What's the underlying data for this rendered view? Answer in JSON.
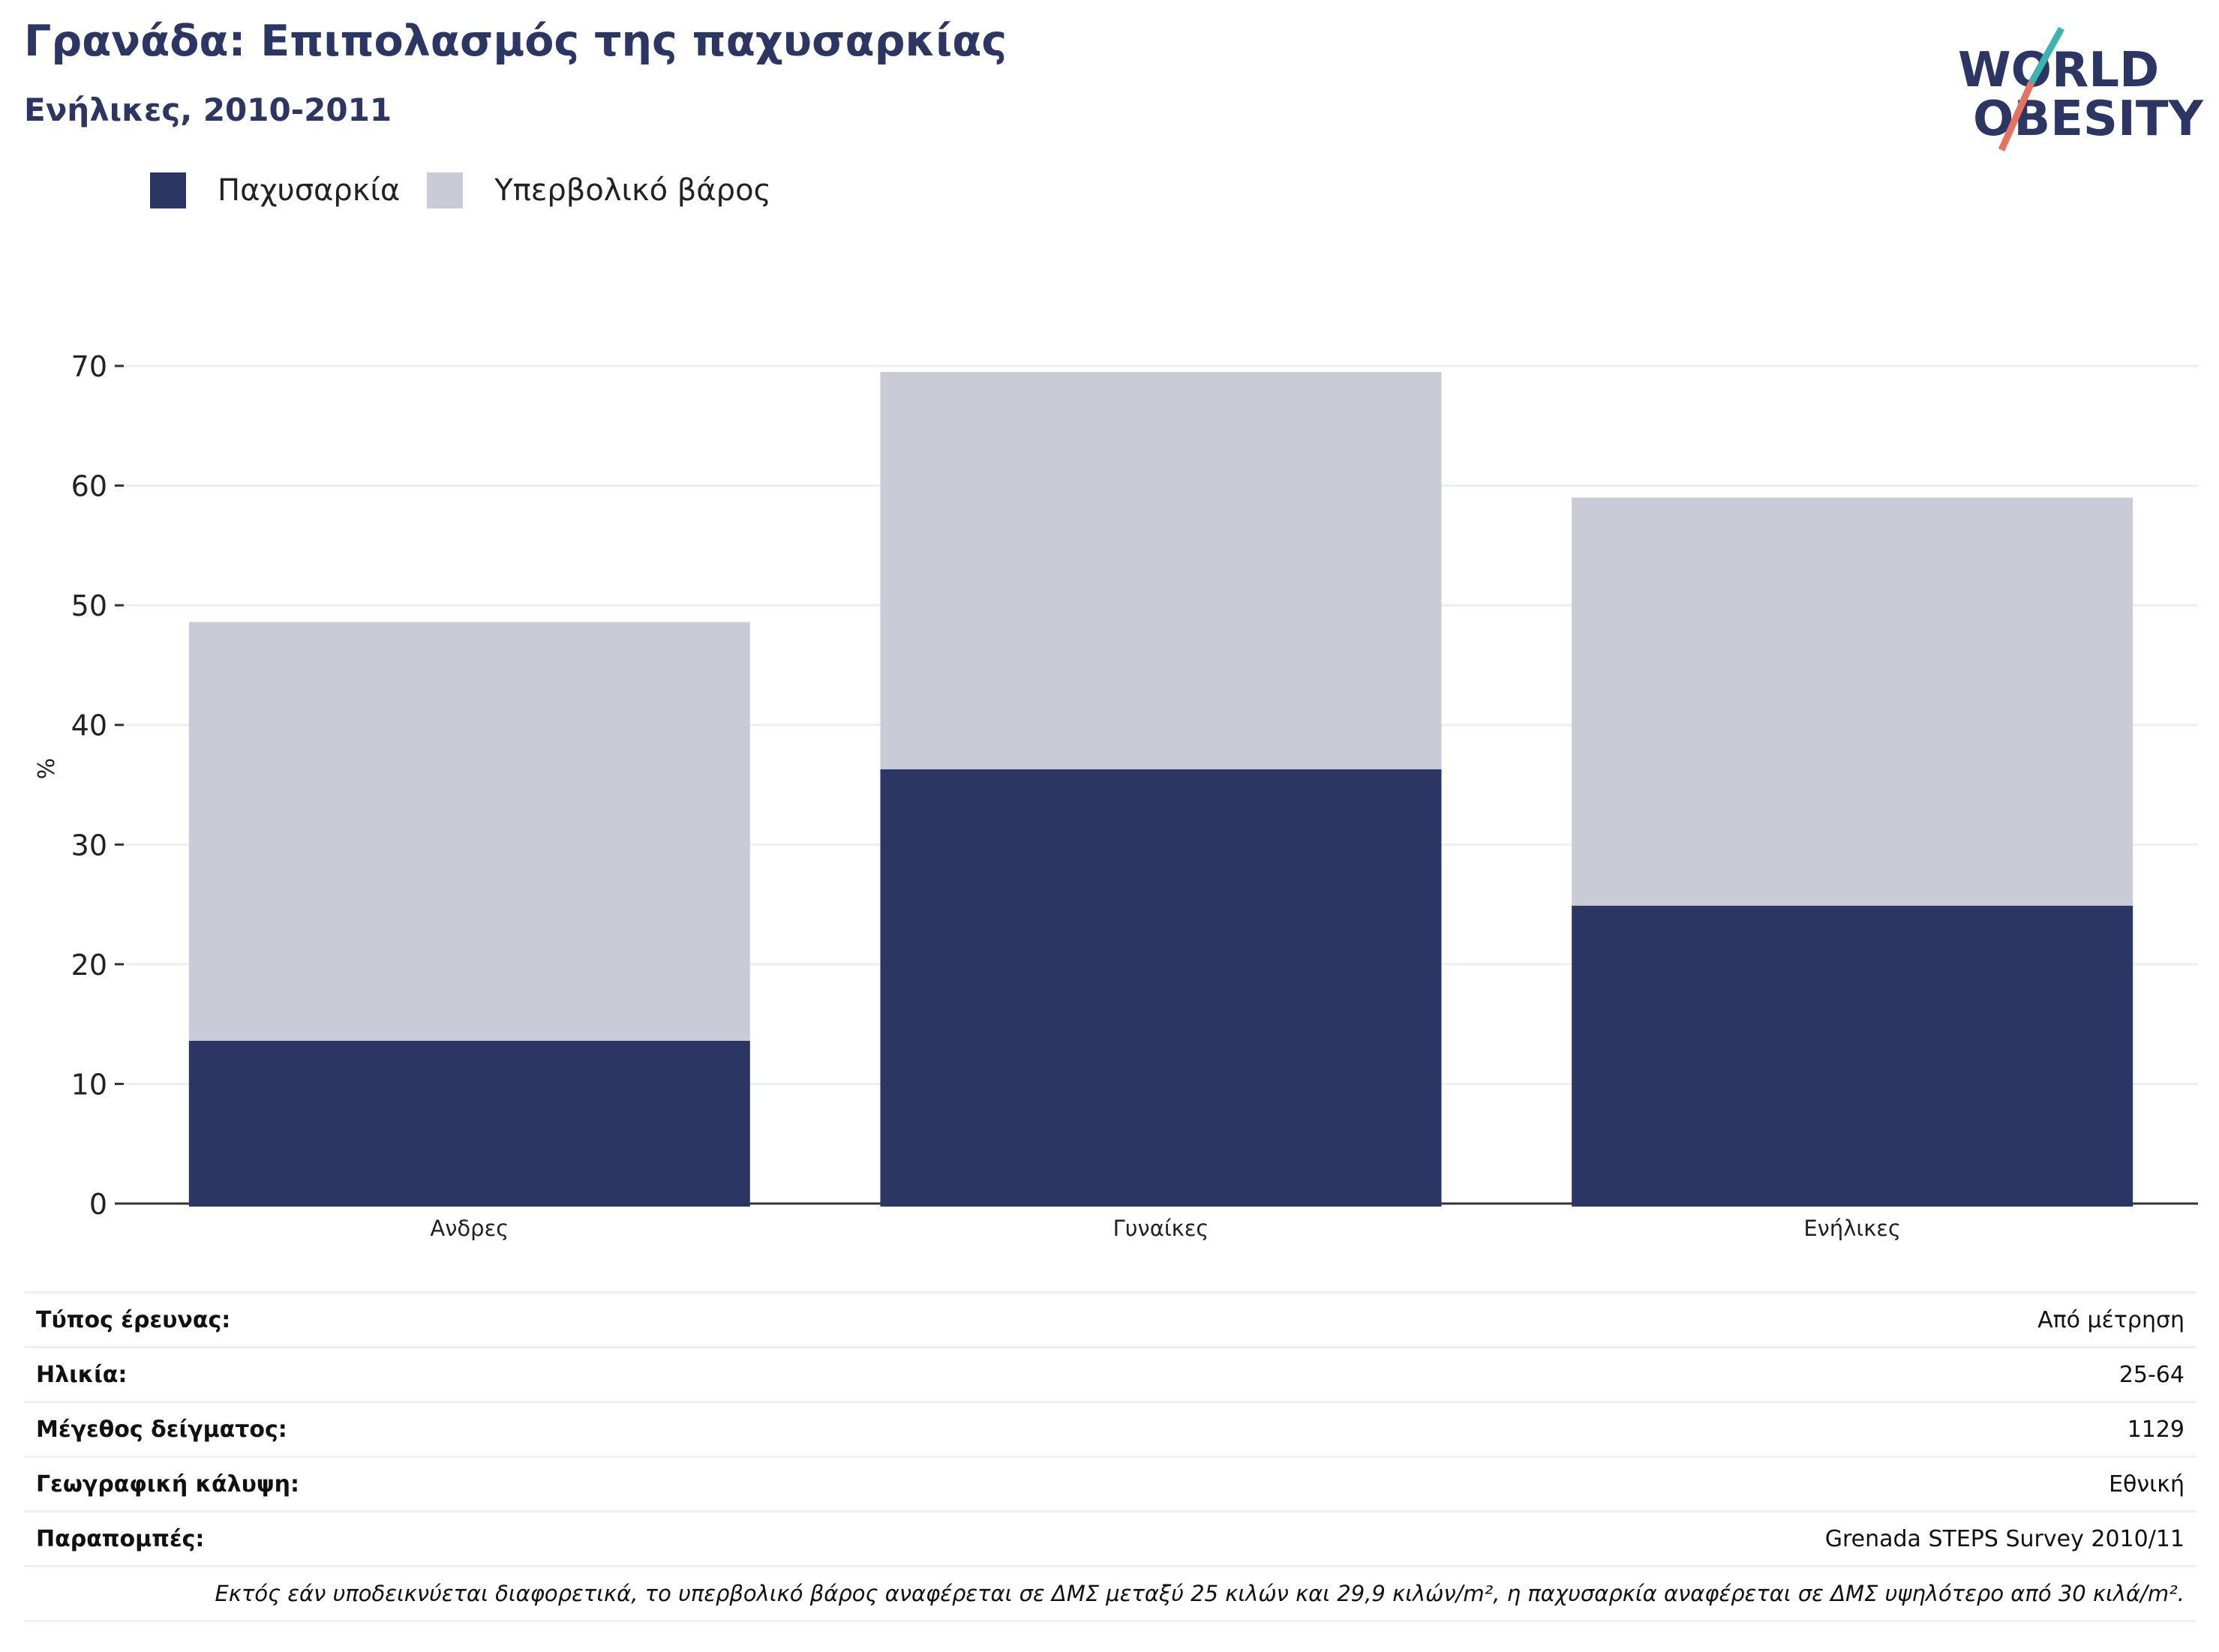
{
  "header": {
    "title": "Γρανάδα: Επιπολασμός της παχυσαρκίας",
    "subtitle": "Ενήλικες, 2010-2011"
  },
  "logo": {
    "line1": "WORLD",
    "line2": "OBESITY"
  },
  "colors": {
    "obesity": "#2b3664",
    "overweight": "#cacbd6",
    "title": "#2b3664",
    "logo_teal": "#3ab5b0",
    "logo_coral": "#e5735f",
    "grid": "#eceef1",
    "axis": "#333333"
  },
  "chart_data": {
    "type": "bar",
    "stacked": true,
    "categories": [
      "Ανδρες",
      "Γυναίκες",
      "Ενήλικες"
    ],
    "series": [
      {
        "name": "Παχυσαρκία",
        "values": [
          13.6,
          36.3,
          24.9
        ]
      },
      {
        "name": "Υπερβολικό βάρος",
        "values": [
          35.0,
          33.2,
          34.1
        ]
      }
    ],
    "ylabel": "%",
    "ylim": [
      0,
      70
    ],
    "yticks": [
      0,
      10,
      20,
      30,
      40,
      50,
      60,
      70
    ],
    "grid": true,
    "legend": "top-left"
  },
  "info": [
    {
      "label": "Τύπος έρευνας:",
      "value": "Από μέτρηση"
    },
    {
      "label": "Ηλικία:",
      "value": "25-64"
    },
    {
      "label": "Μέγεθος δείγματος:",
      "value": "1129"
    },
    {
      "label": "Γεωγραφική κάλυψη:",
      "value": "Εθνική"
    },
    {
      "label": "Παραπομπές:",
      "value": "Grenada STEPS Survey 2010/11"
    }
  ],
  "note": "Εκτός εάν υποδεικνύεται διαφορετικά, το υπερβολικό βάρος αναφέρεται σε ΔΜΣ μεταξύ 25 κιλών και 29,9 κιλών/m², η παχυσαρκία αναφέρεται σε ΔΜΣ υψηλότερο από 30 κιλά/m²."
}
